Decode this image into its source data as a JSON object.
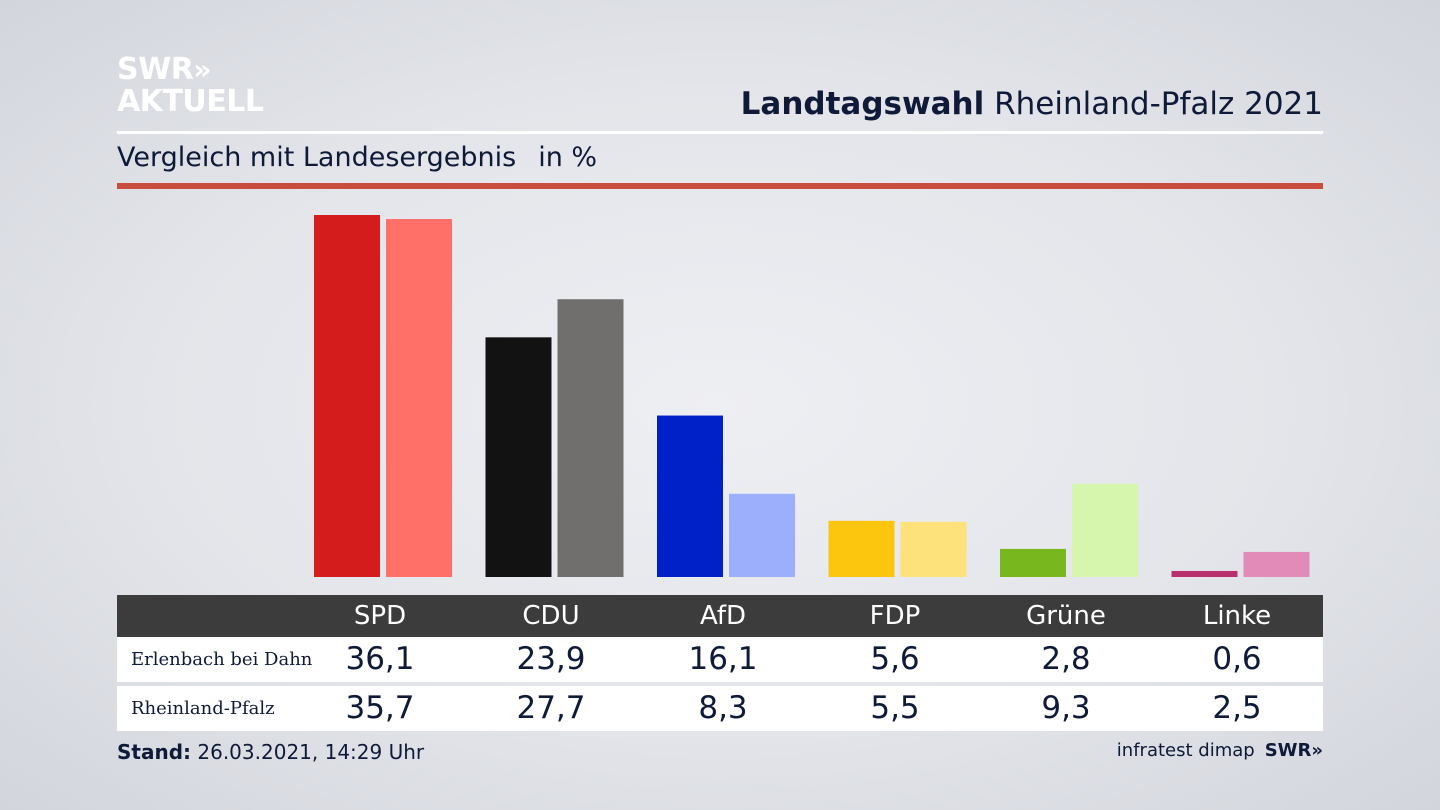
{
  "logo": {
    "line1": "SWR",
    "chevrons": "»",
    "line2": "AKTUELL"
  },
  "header": {
    "title_bold": "Landtagswahl",
    "title_rest": "Rheinland-Pfalz 2021",
    "subtitle": "Vergleich mit Landesergebnis",
    "unit": "in %"
  },
  "chart_data": {
    "type": "bar",
    "title": "Landtagswahl Rheinland-Pfalz 2021",
    "subtitle": "Vergleich mit Landesergebnis",
    "unit": "in %",
    "categories": [
      "SPD",
      "CDU",
      "AfD",
      "FDP",
      "Grüne",
      "Linke"
    ],
    "series": [
      {
        "name": "Erlenbach bei Dahn",
        "values": [
          36.1,
          23.9,
          16.1,
          5.6,
          2.8,
          0.6
        ],
        "labels": [
          "36,1",
          "23,9",
          "16,1",
          "5,6",
          "2,8",
          "0,6"
        ],
        "colors": [
          "#d41c1c",
          "#121212",
          "#0020c8",
          "#fcc60e",
          "#78b81e",
          "#b8316e"
        ]
      },
      {
        "name": "Rheinland-Pfalz",
        "values": [
          35.7,
          27.7,
          8.3,
          5.5,
          9.3,
          2.5
        ],
        "labels": [
          "35,7",
          "27,7",
          "8,3",
          "5,5",
          "9,3",
          "2,5"
        ],
        "colors": [
          "#fe7068",
          "#706f6d",
          "#9caffc",
          "#fde17a",
          "#d6f5ad",
          "#e28bb8"
        ]
      }
    ],
    "ylim": [
      0,
      36.1
    ],
    "grid": false
  },
  "footer": {
    "stand_label": "Stand:",
    "stand_value": "26.03.2021, 14:29 Uhr",
    "source": "infratest dimap",
    "source_logo": "SWR»"
  }
}
